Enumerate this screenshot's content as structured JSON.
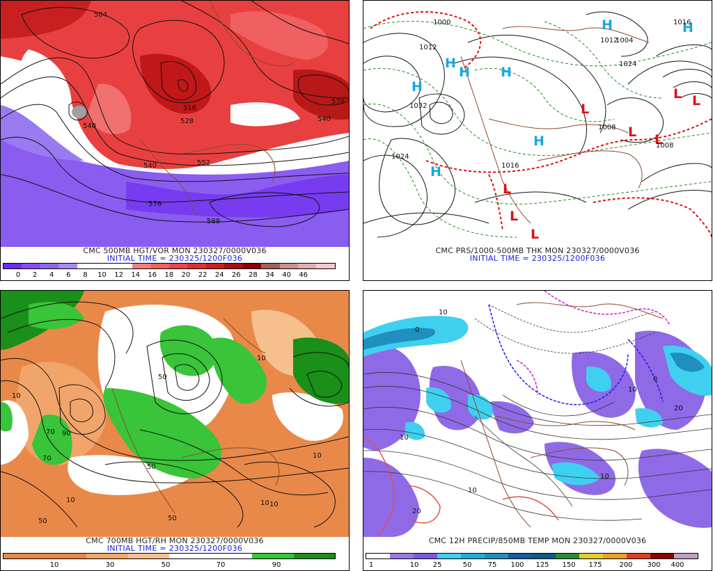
{
  "panels": [
    {
      "id": "p1",
      "title": "CMC 500MB HGT/VOR MON 230327/0000V036",
      "subtitle": "INITIAL TIME = 230325/1200F036",
      "colorbar": [
        "#6f2df0",
        "#8a4cf2",
        "#8f66e6",
        "#a58cf0",
        "#ffffff",
        "#ffffff",
        "#ffffff",
        "#f08080",
        "#f06060",
        "#e84848",
        "#e03030",
        "#c82020",
        "#a81010",
        "#900000",
        "#a06060",
        "#c89090",
        "#e0b0b0",
        "#f6c8d0"
      ],
      "ticks": [
        "0",
        "2",
        "4",
        "6",
        "8",
        "10",
        "12",
        "14",
        "16",
        "18",
        "20",
        "22",
        "24",
        "26",
        "28",
        "34",
        "40",
        "46"
      ],
      "map_labels": [
        "504",
        "540",
        "516",
        "528",
        "540",
        "552",
        "576",
        "588",
        "576",
        "540"
      ]
    },
    {
      "id": "p2",
      "title": "CMC PRS/1000-500MB THK MON 230327/0000V036",
      "subtitle": "INITIAL TIME = 230325/1200F036",
      "map_labels": [
        "1000",
        "1012",
        "1032",
        "1024",
        "1008",
        "1024",
        "1008",
        "1012",
        "1004",
        "1016",
        "1016"
      ],
      "highs": [
        "H",
        "H",
        "H",
        "H",
        "H",
        "H",
        "H",
        "H"
      ],
      "lows": [
        "L",
        "L",
        "L",
        "L",
        "L",
        "L",
        "L",
        "L"
      ]
    },
    {
      "id": "p3",
      "title": "CMC 700MB HGT/RH MON 230327/0000V036",
      "subtitle": "INITIAL TIME = 230325/1200F036",
      "colorbar": [
        "#e8894a",
        "#e8894a",
        "#f0a56a",
        "#f6c08e",
        "#ffffff",
        "#ffffff",
        "#39c439",
        "#1a8f1a"
      ],
      "ticks": [
        "10",
        "30",
        "50",
        "70",
        "90"
      ],
      "map_labels": [
        "10",
        "50",
        "10",
        "70",
        "50",
        "90",
        "10",
        "10",
        "50",
        "10",
        "70",
        "10",
        "50"
      ]
    },
    {
      "id": "p4",
      "title": "CMC 12H PRECIP/850MB TEMP MON 230327/0000V036",
      "subtitle": "",
      "colorbar": [
        "#ffffff",
        "#9b78e6",
        "#7a5cdc",
        "#3fd0f0",
        "#19b0d8",
        "#1f8fc0",
        "#1060a0",
        "#0f5a86",
        "#2a8a3a",
        "#e0d020",
        "#f0a020",
        "#e04020",
        "#900000",
        "#c0a0c0"
      ],
      "ticks": [
        "1",
        "10",
        "25",
        "50",
        "75",
        "100",
        "125",
        "150",
        "175",
        "200",
        "300",
        "400"
      ],
      "map_labels": [
        "10",
        "0",
        "10",
        "20",
        "10",
        "0",
        "10",
        "10",
        "20"
      ]
    }
  ]
}
